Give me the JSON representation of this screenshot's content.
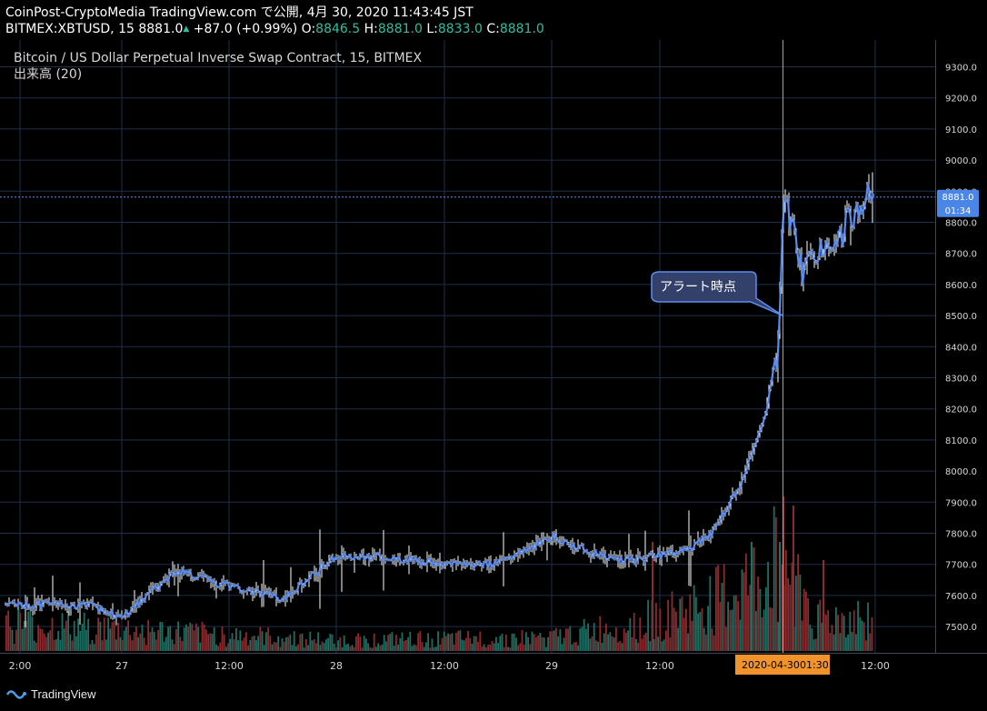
{
  "header": {
    "line1": "CoinPost-CryptoMedia TradingView.com で公開, 4月 30, 2020 11:43:45 JST",
    "symbol": "BITMEX:XBTUSD, 15",
    "last": "8881.0",
    "change_arrow": "▲",
    "change": "+87.0 (+0.99%)",
    "o_label": "O:",
    "o_value": "8846.5",
    "h_label": "H:",
    "h_value": "8881.0",
    "l_label": "L:",
    "l_value": "8833.0",
    "c_label": "C:",
    "c_value": "8881.0"
  },
  "legend": {
    "title": "Bitcoin / US Dollar Perpetual Inverse Swap Contract, 15, BITMEX",
    "volume_label": "出来高 (20)"
  },
  "annotation": {
    "text": "アラート時点"
  },
  "price_tag": {
    "value": "8881.0",
    "countdown": "01:34"
  },
  "time_tag": {
    "date": "2020-04-30",
    "time": "01:30"
  },
  "footer": {
    "brand": "TradingView",
    "logo_icon": "tradingview-logo-icon"
  },
  "colors": {
    "price_line": "#5b8def",
    "wick": "#ffffff",
    "vol_up": "#1e6e62",
    "vol_down": "#8a2b30",
    "grid": "#1f2f4a",
    "crosshair": "#f0932b",
    "alert_box": "#33416a",
    "time_tag_bg": "#f0932b"
  },
  "chart_data": {
    "type": "line",
    "series": [
      {
        "x": [
          "26 20:00",
          "27 00:00",
          "27 06:00",
          "27 12:00",
          "27 18:00",
          "28 00:00",
          "28 06:00",
          "28 12:00",
          "28 18:00",
          "29 00:00",
          "29 06:00",
          "29 09:00",
          "29 12:00",
          "29 14:00",
          "29 16:00",
          "29 18:00",
          "29 21:00",
          "30 00:00",
          "30 01:00",
          "30 01:15",
          "30 01:30",
          "30 02:00",
          "30 04:00",
          "30 06:00",
          "30 08:00",
          "30 11:30"
        ],
        "values": [
          7570,
          7530,
          7680,
          7630,
          7590,
          7730,
          7720,
          7700,
          7700,
          7790,
          7720,
          7710,
          7730,
          7740,
          7760,
          7800,
          7950,
          8180,
          8380,
          8320,
          8500,
          8900,
          8650,
          8700,
          8750,
          8881
        ]
      }
    ],
    "volume": [
      {
        "time": "27 00:00",
        "value": 40
      },
      {
        "time": "27 12:00",
        "value": 30
      },
      {
        "time": "28 00:00",
        "value": 20
      },
      {
        "time": "29 00:00",
        "value": 25
      },
      {
        "time": "29 12:00",
        "value": 60
      },
      {
        "time": "29 18:00",
        "value": 90
      },
      {
        "time": "30 00:00",
        "value": 140
      },
      {
        "time": "30 01:30",
        "value": 180
      },
      {
        "time": "30 06:00",
        "value": 60
      }
    ],
    "ylim": [
      7450,
      9340
    ],
    "y_ticks": [
      "9300.0",
      "9200.0",
      "9100.0",
      "9000.0",
      "8900.0",
      "8800.0",
      "8700.0",
      "8600.0",
      "8500.0",
      "8400.0",
      "8300.0",
      "8200.0",
      "8100.0",
      "8000.0",
      "7900.0",
      "7800.0",
      "7700.0",
      "7600.0",
      "7500.0"
    ],
    "x_ticks": [
      "2:00",
      "27",
      "12:00",
      "28",
      "12:00",
      "29",
      "12:00",
      "12:00"
    ],
    "last_price": 8881,
    "grid": true
  }
}
